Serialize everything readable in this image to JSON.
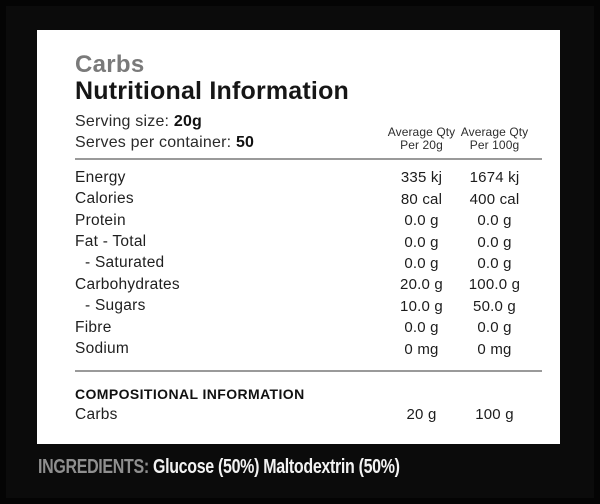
{
  "panel": {
    "brand": "Carbs",
    "title": "Nutritional Information",
    "serving_size_label": "Serving size:",
    "serving_size_value": "20g",
    "serves_per_container_label": "Serves per container:",
    "serves_per_container_value": "50",
    "columns": [
      {
        "line1": "Average Qty",
        "line2": "Per 20g"
      },
      {
        "line1": "Average Qty",
        "line2": "Per 100g"
      }
    ],
    "rows": [
      {
        "label": "Energy",
        "per_serve": "335 kj",
        "per_100": "1674 kj",
        "indent": false
      },
      {
        "label": "Calories",
        "per_serve": "80 cal",
        "per_100": "400 cal",
        "indent": false
      },
      {
        "label": "Protein",
        "per_serve": "0.0 g",
        "per_100": "0.0 g",
        "indent": false
      },
      {
        "label": "Fat - Total",
        "per_serve": "0.0 g",
        "per_100": "0.0 g",
        "indent": false
      },
      {
        "label": "- Saturated",
        "per_serve": "0.0 g",
        "per_100": "0.0 g",
        "indent": true
      },
      {
        "label": "Carbohydrates",
        "per_serve": "20.0 g",
        "per_100": "100.0 g",
        "indent": false
      },
      {
        "label": "- Sugars",
        "per_serve": "10.0 g",
        "per_100": "50.0 g",
        "indent": true
      },
      {
        "label": "Fibre",
        "per_serve": "0.0 g",
        "per_100": "0.0 g",
        "indent": false
      },
      {
        "label": "Sodium",
        "per_serve": "0 mg",
        "per_100": "0 mg",
        "indent": false
      }
    ],
    "compositional": {
      "heading": "COMPOSITIONAL INFORMATION",
      "rows": [
        {
          "label": "Carbs",
          "per_serve": "20 g",
          "per_100": "100 g",
          "indent": false
        }
      ]
    }
  },
  "footer": {
    "ingredients_label": "INGREDIENTS:",
    "ingredients_text": "Glucose (50%) Maltodextrin (50%)"
  },
  "colors": {
    "background": "#040404",
    "panel_background": "#ffffff",
    "brand_gray": "#7a7a7a",
    "divider_gray": "#9a9a9a",
    "ingredients_label_gray": "#8f8f8f",
    "ingredients_text_white": "#f2f2f2",
    "text_black": "#1c1c1c"
  }
}
